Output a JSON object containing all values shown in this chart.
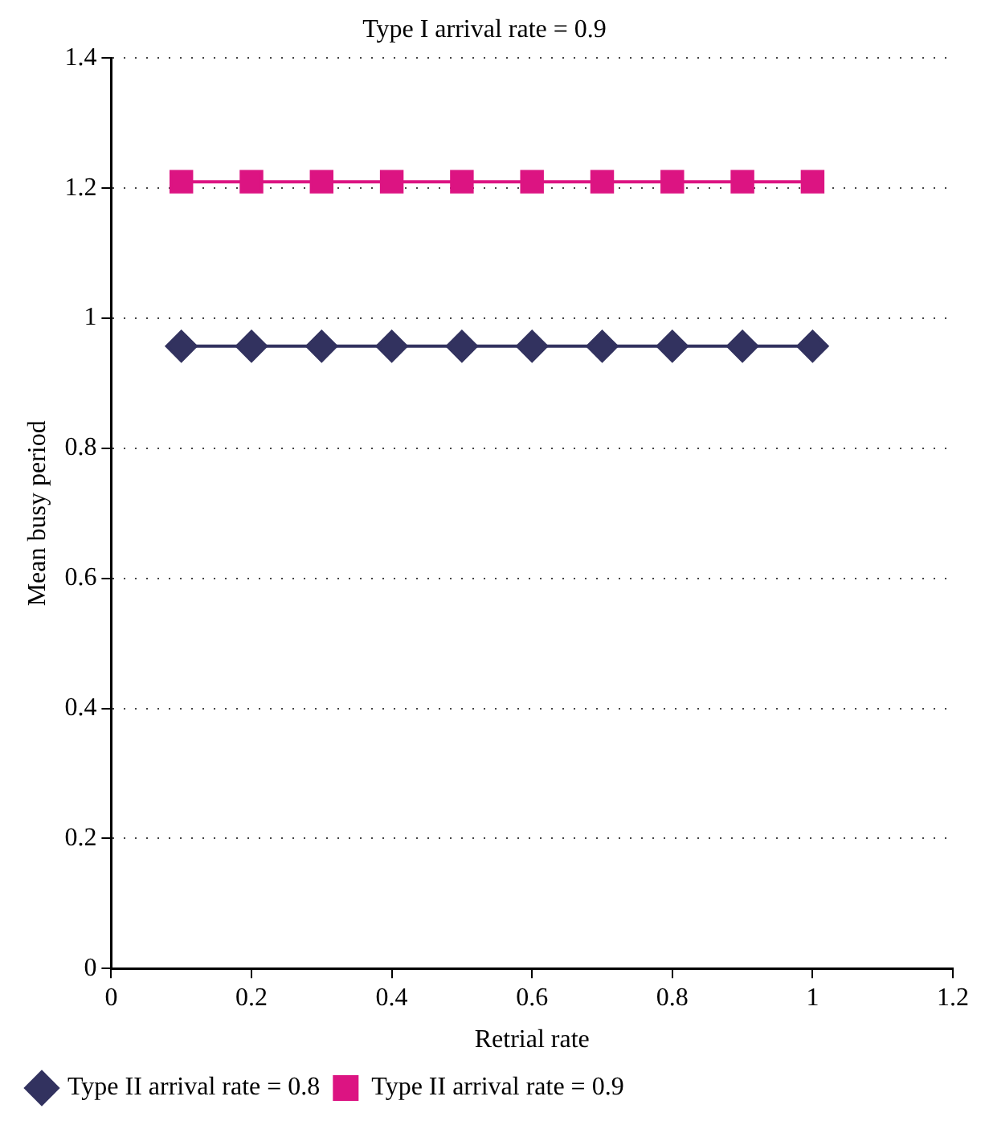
{
  "chart_data": {
    "type": "line",
    "title": "Type I arrival rate = 0.9",
    "xlabel": "Retrial rate",
    "ylabel": "Mean busy period",
    "x": [
      0.1,
      0.2,
      0.3,
      0.4,
      0.5,
      0.6,
      0.7,
      0.8,
      0.9,
      1
    ],
    "series": [
      {
        "name": "Type II arrival rate = 0.8",
        "color": "#32325f",
        "marker": "diamond",
        "values": [
          0.957,
          0.957,
          0.957,
          0.957,
          0.957,
          0.957,
          0.957,
          0.957,
          0.957,
          0.957
        ]
      },
      {
        "name": "Type II arrival rate = 0.9",
        "color": "#dc1482",
        "marker": "square",
        "values": [
          1.21,
          1.21,
          1.21,
          1.21,
          1.21,
          1.21,
          1.21,
          1.21,
          1.21,
          1.21
        ]
      }
    ],
    "xlim": [
      0,
      1.2
    ],
    "xticks": [
      0,
      0.2,
      0.4,
      0.6,
      0.8,
      1,
      1.2
    ],
    "ylim": [
      0,
      1.4
    ],
    "yticks": [
      0,
      0.2,
      0.4,
      0.6,
      0.8,
      1,
      1.2,
      1.4
    ],
    "grid": "y",
    "legend": "bottom left"
  }
}
